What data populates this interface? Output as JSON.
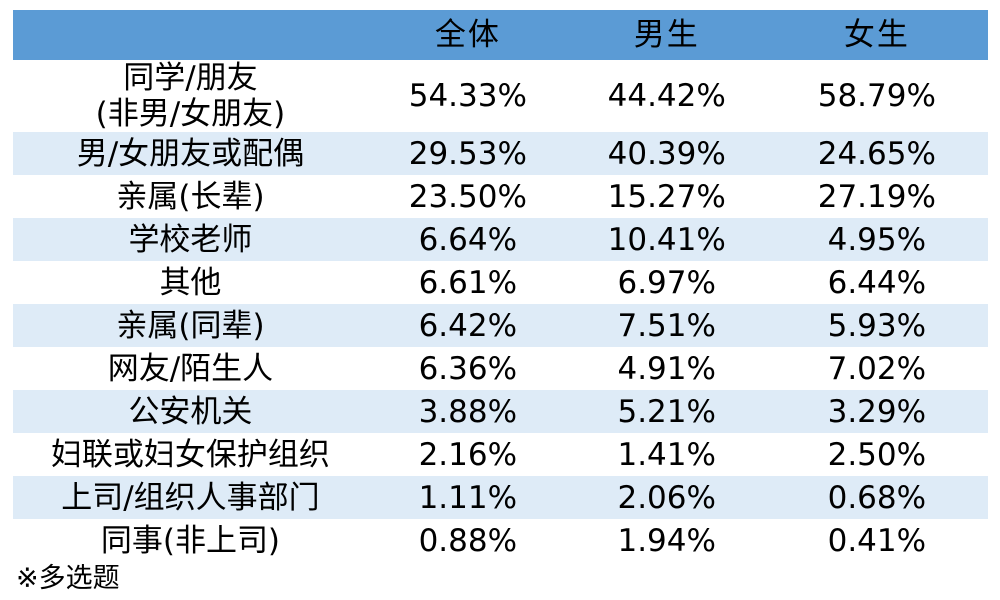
{
  "colors": {
    "header_bg": "#5B9BD5",
    "band_bg": "#DEEBF7",
    "text": "#000000",
    "page_bg": "#FFFFFF"
  },
  "chart_data": {
    "type": "table",
    "title": "",
    "label_column_header": "",
    "columns": [
      "全体",
      "男生",
      "女生"
    ],
    "rows": [
      {
        "label": "同学/朋友\n(非男/女朋友)",
        "values": [
          "54.33%",
          "44.42%",
          "58.79%"
        ]
      },
      {
        "label": "男/女朋友或配偶",
        "values": [
          "29.53%",
          "40.39%",
          "24.65%"
        ]
      },
      {
        "label": "亲属(长辈)",
        "values": [
          "23.50%",
          "15.27%",
          "27.19%"
        ]
      },
      {
        "label": "学校老师",
        "values": [
          "6.64%",
          "10.41%",
          "4.95%"
        ]
      },
      {
        "label": "其他",
        "values": [
          "6.61%",
          "6.97%",
          "6.44%"
        ]
      },
      {
        "label": "亲属(同辈)",
        "values": [
          "6.42%",
          "7.51%",
          "5.93%"
        ]
      },
      {
        "label": "网友/陌生人",
        "values": [
          "6.36%",
          "4.91%",
          "7.02%"
        ]
      },
      {
        "label": "公安机关",
        "values": [
          "3.88%",
          "5.21%",
          "3.29%"
        ]
      },
      {
        "label": "妇联或妇女保护组织",
        "values": [
          "2.16%",
          "1.41%",
          "2.50%"
        ]
      },
      {
        "label": "上司/组织人事部门",
        "values": [
          "1.11%",
          "2.06%",
          "0.68%"
        ]
      },
      {
        "label": "同事(非上司)",
        "values": [
          "0.88%",
          "1.94%",
          "0.41%"
        ]
      }
    ],
    "footnote": "※多选题",
    "layout": {
      "banding": "alternate-light-blue-starting-second-data-row",
      "grid": false,
      "value_format": "percent"
    }
  }
}
